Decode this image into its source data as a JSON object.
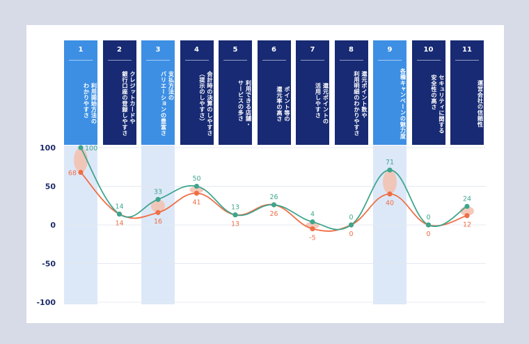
{
  "colors": {
    "highlight_header": "#3d8fe4",
    "normal_header": "#172a73",
    "highlight_band": "#dce8f8",
    "series_green": "#3fa58d",
    "series_orange": "#ef6e45",
    "gap_marker": "#f3bfae",
    "axis_text": "#1f2d6b"
  },
  "chart_data": {
    "type": "line",
    "categories": [
      {
        "num": "1",
        "label": "利用開始方法の\nわかりやすさ",
        "highlight": true
      },
      {
        "num": "2",
        "label": "クレジットカードや\n銀行口座の登録しやすさ",
        "highlight": false
      },
      {
        "num": "3",
        "label": "支払方法の\nバリエーションの豊富さ",
        "highlight": true
      },
      {
        "num": "4",
        "label": "会計時の決算のしやすさ\n（提示のしやすさ）",
        "highlight": false
      },
      {
        "num": "5",
        "label": "利用できる店舗・\nサービスの多さ",
        "highlight": false
      },
      {
        "num": "6",
        "label": "ポイント等の\n還元率の高さ",
        "highlight": false
      },
      {
        "num": "7",
        "label": "還元ポイントの\n活用しやすさ",
        "highlight": false
      },
      {
        "num": "8",
        "label": "還元ポイント数や\n利用明細のわかりやすさ",
        "highlight": false
      },
      {
        "num": "9",
        "label": "各種キャンペーンの魅力度",
        "highlight": true
      },
      {
        "num": "10",
        "label": "セキュリティに関する\n安全性の高さ",
        "highlight": false
      },
      {
        "num": "11",
        "label": "運営会社の信頼性",
        "highlight": false
      }
    ],
    "series": [
      {
        "color": "#3fa58d",
        "values": [
          100,
          14,
          33,
          50,
          13,
          26,
          4,
          0,
          71,
          0,
          24
        ]
      },
      {
        "color": "#ef6e45",
        "values": [
          68,
          14,
          16,
          41,
          13,
          26,
          -5,
          0,
          40,
          0,
          12
        ]
      }
    ],
    "yticks": [
      "100",
      "50",
      "0",
      "-50",
      "-100"
    ],
    "ylim": [
      -100,
      100
    ],
    "grid": true
  }
}
